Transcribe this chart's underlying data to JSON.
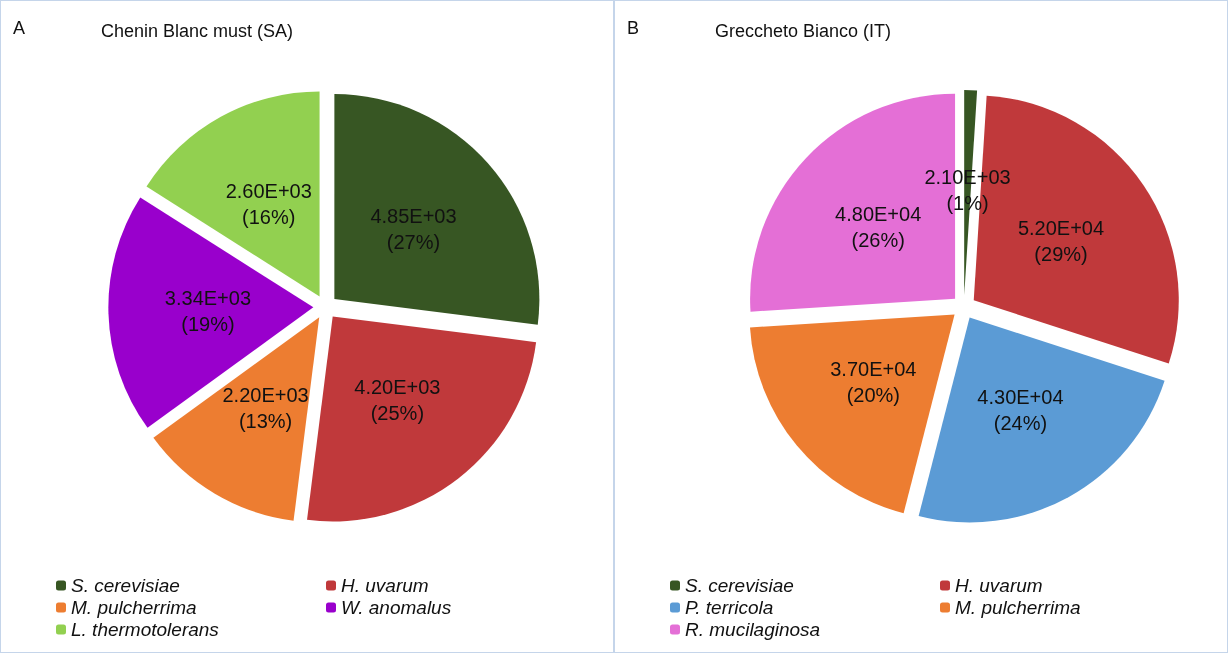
{
  "chart_data": [
    {
      "type": "pie",
      "title": "Chenin Blanc must (SA)",
      "annotations": [
        "A"
      ],
      "categories": [
        "S. cerevisiae",
        "H. uvarum",
        "M. pulcherrima",
        "W. anomalus",
        "L. thermotolerans"
      ],
      "values": [
        27,
        25,
        13,
        19,
        16
      ],
      "value_labels": [
        "4.85E+03\n(27%)",
        "4.20E+03\n(25%)",
        "2.20E+03\n(13%)",
        "3.34E+03\n(19%)",
        "2.60E+03\n(16%)"
      ],
      "colors": [
        "#375623",
        "#c0393b",
        "#ed7d31",
        "#9900cc",
        "#92d050"
      ],
      "legend": "bottom"
    },
    {
      "type": "pie",
      "title": "Greccheto Bianco (IT)",
      "annotations": [
        "B"
      ],
      "categories": [
        "S. cerevisiae",
        "H. uvarum",
        "P. terricola",
        "M. pulcherrima",
        "R. mucilaginosa"
      ],
      "values": [
        1,
        29,
        24,
        20,
        26
      ],
      "value_labels": [
        "2.10E+03\n(1%)",
        "5.20E+04\n(29%)",
        "4.30E+04\n(24%)",
        "3.70E+04\n(20%)",
        "4.80E+04\n(26%)"
      ],
      "colors": [
        "#375623",
        "#c0393b",
        "#5b9bd5",
        "#ed7d31",
        "#e46fd6"
      ],
      "legend": "bottom"
    }
  ]
}
